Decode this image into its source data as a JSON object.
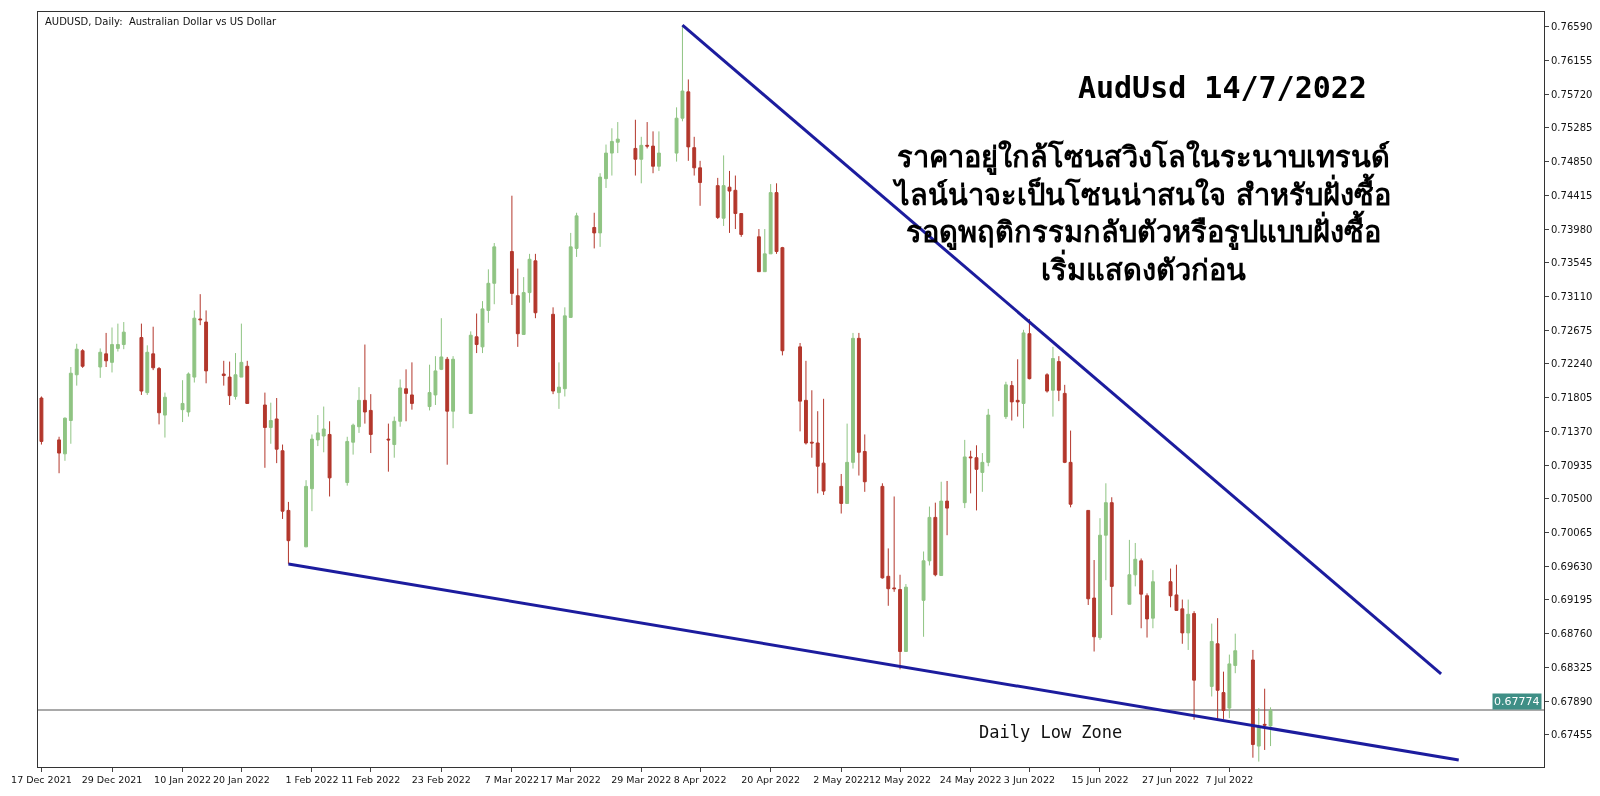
{
  "chart_data": {
    "type": "candlestick",
    "title": "AudUsd 14/7/2022",
    "subtitle": "ราคาอยู่ใกล้โซนสวิงโลในระนาบเทรนด์\nไลน์น่าจะเป็นโซนน่าสนใจ สำหรับฝั่งซื้อ\nรอดูพฤติกรรมกลับตัวหรือรูปแบบฝั่งซื้อ\nเริ่มแสดงตัวก่อน",
    "annotations": [
      "AUDUSD, Daily:  Australian Dollar vs US Dollar",
      "Daily Low Zone"
    ],
    "x": [
      "2021-12-17",
      "2021-12-20",
      "2021-12-21",
      "2021-12-22",
      "2021-12-23",
      "2021-12-24",
      "2021-12-27",
      "2021-12-28",
      "2021-12-29",
      "2021-12-30",
      "2021-12-31",
      "2022-01-03",
      "2022-01-04",
      "2022-01-05",
      "2022-01-06",
      "2022-01-07",
      "2022-01-10",
      "2022-01-11",
      "2022-01-12",
      "2022-01-13",
      "2022-01-14",
      "2022-01-17",
      "2022-01-18",
      "2022-01-19",
      "2022-01-20",
      "2022-01-21",
      "2022-01-24",
      "2022-01-25",
      "2022-01-26",
      "2022-01-27",
      "2022-01-28",
      "2022-01-31",
      "2022-02-01",
      "2022-02-02",
      "2022-02-03",
      "2022-02-04",
      "2022-02-07",
      "2022-02-08",
      "2022-02-09",
      "2022-02-10",
      "2022-02-11",
      "2022-02-14",
      "2022-02-15",
      "2022-02-16",
      "2022-02-17",
      "2022-02-18",
      "2022-02-21",
      "2022-02-22",
      "2022-02-23",
      "2022-02-24",
      "2022-02-25",
      "2022-02-28",
      "2022-03-01",
      "2022-03-02",
      "2022-03-03",
      "2022-03-04",
      "2022-03-07",
      "2022-03-08",
      "2022-03-09",
      "2022-03-10",
      "2022-03-11",
      "2022-03-14",
      "2022-03-15",
      "2022-03-16",
      "2022-03-17",
      "2022-03-18",
      "2022-03-21",
      "2022-03-22",
      "2022-03-23",
      "2022-03-24",
      "2022-03-25",
      "2022-03-28",
      "2022-03-29",
      "2022-03-30",
      "2022-03-31",
      "2022-04-01",
      "2022-04-04",
      "2022-04-05",
      "2022-04-06",
      "2022-04-07",
      "2022-04-08",
      "2022-04-11",
      "2022-04-12",
      "2022-04-13",
      "2022-04-14",
      "2022-04-15",
      "2022-04-18",
      "2022-04-19",
      "2022-04-20",
      "2022-04-21",
      "2022-04-22",
      "2022-04-25",
      "2022-04-26",
      "2022-04-27",
      "2022-04-28",
      "2022-04-29",
      "2022-05-02",
      "2022-05-03",
      "2022-05-04",
      "2022-05-05",
      "2022-05-06",
      "2022-05-09",
      "2022-05-10",
      "2022-05-11",
      "2022-05-12",
      "2022-05-13",
      "2022-05-16",
      "2022-05-17",
      "2022-05-18",
      "2022-05-19",
      "2022-05-20",
      "2022-05-23",
      "2022-05-24",
      "2022-05-25",
      "2022-05-26",
      "2022-05-27",
      "2022-05-30",
      "2022-05-31",
      "2022-06-01",
      "2022-06-02",
      "2022-06-03",
      "2022-06-06",
      "2022-06-07",
      "2022-06-08",
      "2022-06-09",
      "2022-06-10",
      "2022-06-13",
      "2022-06-14",
      "2022-06-15",
      "2022-06-16",
      "2022-06-17",
      "2022-06-20",
      "2022-06-21",
      "2022-06-22",
      "2022-06-23",
      "2022-06-24",
      "2022-06-27",
      "2022-06-28",
      "2022-06-29",
      "2022-06-30",
      "2022-07-01",
      "2022-07-04",
      "2022-07-05",
      "2022-07-06",
      "2022-07-07",
      "2022-07-08",
      "2022-07-11",
      "2022-07-12",
      "2022-07-13",
      "2022-07-14"
    ],
    "ohlc": [
      [
        0.718,
        0.7182,
        0.712,
        0.7124
      ],
      [
        0.7126,
        0.713,
        0.7083,
        0.7109
      ],
      [
        0.7108,
        0.7155,
        0.7099,
        0.7154
      ],
      [
        0.7151,
        0.722,
        0.7121,
        0.7212
      ],
      [
        0.721,
        0.725,
        0.7196,
        0.7243
      ],
      [
        0.7241,
        0.7243,
        0.7219,
        0.7221
      ],
      [
        0.722,
        0.7244,
        0.7206,
        0.7239
      ],
      [
        0.7237,
        0.7264,
        0.722,
        0.7228
      ],
      [
        0.7226,
        0.7271,
        0.7213,
        0.7249
      ],
      [
        0.7244,
        0.7276,
        0.724,
        0.7249
      ],
      [
        0.7249,
        0.7278,
        0.7243,
        0.7265
      ],
      [
        0.7258,
        0.7276,
        0.7184,
        0.7189
      ],
      [
        0.7187,
        0.7248,
        0.7184,
        0.7239
      ],
      [
        0.7237,
        0.7272,
        0.7216,
        0.7219
      ],
      [
        0.7218,
        0.722,
        0.7146,
        0.7161
      ],
      [
        0.7158,
        0.7187,
        0.7129,
        0.7181
      ],
      [
        0.7165,
        0.7203,
        0.7149,
        0.7173
      ],
      [
        0.7162,
        0.7213,
        0.7156,
        0.7211
      ],
      [
        0.7207,
        0.7293,
        0.72,
        0.7283
      ],
      [
        0.7282,
        0.7314,
        0.7274,
        0.7281
      ],
      [
        0.7278,
        0.7293,
        0.7199,
        0.7215
      ],
      [
        0.7211,
        0.7228,
        0.7196,
        0.7209
      ],
      [
        0.7207,
        0.7227,
        0.7171,
        0.7183
      ],
      [
        0.7182,
        0.7238,
        0.7178,
        0.721
      ],
      [
        0.7207,
        0.7276,
        0.7207,
        0.7226
      ],
      [
        0.7221,
        0.7228,
        0.7173,
        0.7173
      ],
      [
        0.7171,
        0.7187,
        0.709,
        0.7142
      ],
      [
        0.7142,
        0.7174,
        0.7121,
        0.7151
      ],
      [
        0.7153,
        0.718,
        0.7096,
        0.7114
      ],
      [
        0.7112,
        0.712,
        0.7024,
        0.7034
      ],
      [
        0.7035,
        0.7046,
        0.6966,
        0.6996
      ],
      [
        0.6988,
        0.7074,
        0.6988,
        0.7066
      ],
      [
        0.7063,
        0.7133,
        0.7034,
        0.7127
      ],
      [
        0.7126,
        0.7158,
        0.7118,
        0.7135
      ],
      [
        0.7131,
        0.7169,
        0.711,
        0.714
      ],
      [
        0.7133,
        0.715,
        0.7053,
        0.7077
      ],
      [
        0.7071,
        0.713,
        0.7067,
        0.7124
      ],
      [
        0.7123,
        0.7147,
        0.7107,
        0.7145
      ],
      [
        0.7143,
        0.7194,
        0.7135,
        0.7177
      ],
      [
        0.7177,
        0.7249,
        0.7147,
        0.7162
      ],
      [
        0.7164,
        0.7185,
        0.7109,
        0.7133
      ],
      [
        0.7127,
        0.7147,
        0.7085,
        0.7126
      ],
      [
        0.712,
        0.7156,
        0.7103,
        0.715
      ],
      [
        0.715,
        0.7204,
        0.7143,
        0.7193
      ],
      [
        0.7192,
        0.7217,
        0.715,
        0.7186
      ],
      [
        0.7184,
        0.7226,
        0.7165,
        0.7173
      ],
      [
        0.7169,
        0.7223,
        0.7164,
        0.7187
      ],
      [
        0.7184,
        0.7234,
        0.7171,
        0.7215
      ],
      [
        0.7217,
        0.7283,
        0.7216,
        0.7233
      ],
      [
        0.723,
        0.7233,
        0.7094,
        0.7163
      ],
      [
        0.7163,
        0.7234,
        0.7141,
        0.723
      ],
      [
        0.716,
        0.7266,
        0.716,
        0.7261
      ],
      [
        0.7259,
        0.7289,
        0.7238,
        0.7249
      ],
      [
        0.7246,
        0.7305,
        0.7238,
        0.7295
      ],
      [
        0.7293,
        0.7346,
        0.7277,
        0.7328
      ],
      [
        0.7328,
        0.738,
        0.7301,
        0.7375
      ],
      [
        0.7369,
        0.7441,
        0.73,
        0.7315
      ],
      [
        0.7312,
        0.7347,
        0.7246,
        0.7263
      ],
      [
        0.7262,
        0.7336,
        0.7262,
        0.7316
      ],
      [
        0.7316,
        0.7366,
        0.7303,
        0.7359
      ],
      [
        0.7357,
        0.7366,
        0.7283,
        0.729
      ],
      [
        0.7288,
        0.7297,
        0.7185,
        0.7189
      ],
      [
        0.7187,
        0.7226,
        0.7166,
        0.7194
      ],
      [
        0.7192,
        0.7297,
        0.7182,
        0.7286
      ],
      [
        0.7284,
        0.7393,
        0.7284,
        0.7375
      ],
      [
        0.7373,
        0.7419,
        0.7362,
        0.7415
      ],
      [
        0.74,
        0.7419,
        0.7373,
        0.7393
      ],
      [
        0.7393,
        0.747,
        0.7375,
        0.7465
      ],
      [
        0.7463,
        0.7507,
        0.7451,
        0.7496
      ],
      [
        0.7496,
        0.7528,
        0.7467,
        0.7511
      ],
      [
        0.751,
        0.7536,
        0.7496,
        0.7514
      ],
      [
        0.7502,
        0.7539,
        0.7467,
        0.7488
      ],
      [
        0.7488,
        0.7517,
        0.7457,
        0.7506
      ],
      [
        0.7506,
        0.7536,
        0.7502,
        0.7505
      ],
      [
        0.7505,
        0.7524,
        0.747,
        0.7479
      ],
      [
        0.7479,
        0.7524,
        0.7473,
        0.7496
      ],
      [
        0.7496,
        0.7555,
        0.7485,
        0.7541
      ],
      [
        0.7541,
        0.7661,
        0.7537,
        0.7576
      ],
      [
        0.7575,
        0.7591,
        0.7486,
        0.7504
      ],
      [
        0.7503,
        0.7517,
        0.7467,
        0.7477
      ],
      [
        0.7477,
        0.7486,
        0.7428,
        0.7458
      ],
      [
        0.7454,
        0.7464,
        0.7411,
        0.7413
      ],
      [
        0.7412,
        0.7493,
        0.7402,
        0.7454
      ],
      [
        0.7452,
        0.7473,
        0.7393,
        0.7447
      ],
      [
        0.7448,
        0.7467,
        0.7398,
        0.7418
      ],
      [
        0.7418,
        0.7418,
        0.7388,
        0.7391
      ],
      [
        0.7388,
        0.7398,
        0.7343,
        0.7343
      ],
      [
        0.7343,
        0.7398,
        0.7343,
        0.7366
      ],
      [
        0.7366,
        0.7456,
        0.7366,
        0.7445
      ],
      [
        0.7445,
        0.7457,
        0.7366,
        0.7369
      ],
      [
        0.7374,
        0.7375,
        0.7235,
        0.7241
      ],
      [
        0.7246,
        0.7251,
        0.7137,
        0.7176
      ],
      [
        0.7177,
        0.7228,
        0.712,
        0.7122
      ],
      [
        0.7123,
        0.719,
        0.7103,
        0.7122
      ],
      [
        0.7122,
        0.7163,
        0.7057,
        0.7092
      ],
      [
        0.7096,
        0.7179,
        0.7055,
        0.706
      ],
      [
        0.7066,
        0.7082,
        0.7031,
        0.7044
      ],
      [
        0.7044,
        0.7147,
        0.7044,
        0.7097
      ],
      [
        0.7097,
        0.7264,
        0.7089,
        0.7257
      ],
      [
        0.7257,
        0.7264,
        0.708,
        0.711
      ],
      [
        0.7111,
        0.7133,
        0.7059,
        0.7072
      ],
      [
        0.7066,
        0.707,
        0.6947,
        0.6948
      ],
      [
        0.695,
        0.6986,
        0.6912,
        0.6934
      ],
      [
        0.6935,
        0.7053,
        0.693,
        0.6934
      ],
      [
        0.6933,
        0.6952,
        0.683,
        0.6853
      ],
      [
        0.6853,
        0.694,
        0.6853,
        0.6936
      ],
      [
        0.6919,
        0.6982,
        0.6872,
        0.697
      ],
      [
        0.697,
        0.704,
        0.6964,
        0.7026
      ],
      [
        0.7026,
        0.7045,
        0.695,
        0.6952
      ],
      [
        0.6951,
        0.7072,
        0.6951,
        0.7047
      ],
      [
        0.7047,
        0.7073,
        0.7003,
        0.7038
      ],
      [
        0.7045,
        0.7126,
        0.7038,
        0.7104
      ],
      [
        0.7104,
        0.7112,
        0.7057,
        0.7103
      ],
      [
        0.7103,
        0.7119,
        0.7035,
        0.7088
      ],
      [
        0.7084,
        0.7109,
        0.7059,
        0.7097
      ],
      [
        0.7097,
        0.7166,
        0.7092,
        0.7158
      ],
      [
        0.7156,
        0.7201,
        0.7153,
        0.7197
      ],
      [
        0.7196,
        0.7202,
        0.7151,
        0.7175
      ],
      [
        0.7177,
        0.723,
        0.7156,
        0.7175
      ],
      [
        0.7173,
        0.7268,
        0.7141,
        0.7264
      ],
      [
        0.7263,
        0.7282,
        0.7204,
        0.7205
      ],
      [
        0.721,
        0.7212,
        0.7187,
        0.7189
      ],
      [
        0.719,
        0.7246,
        0.7156,
        0.7231
      ],
      [
        0.7227,
        0.7234,
        0.7176,
        0.719
      ],
      [
        0.7186,
        0.7197,
        0.7096,
        0.7097
      ],
      [
        0.7097,
        0.7138,
        0.7039,
        0.7043
      ],
      [
        0.7035,
        0.7035,
        0.6913,
        0.6921
      ],
      [
        0.6922,
        0.6971,
        0.6853,
        0.6872
      ],
      [
        0.6871,
        0.7025,
        0.6868,
        0.7003
      ],
      [
        0.7003,
        0.707,
        0.6945,
        0.7045
      ],
      [
        0.7045,
        0.7052,
        0.69,
        0.6937
      ],
      [
        0.6914,
        0.6997,
        0.6914,
        0.6952
      ],
      [
        0.6952,
        0.6993,
        0.6937,
        0.6972
      ],
      [
        0.697,
        0.6973,
        0.6883,
        0.6927
      ],
      [
        0.6925,
        0.6928,
        0.6871,
        0.6895
      ],
      [
        0.6896,
        0.6958,
        0.6883,
        0.6943
      ],
      [
        0.6943,
        0.696,
        0.691,
        0.6925
      ],
      [
        0.6926,
        0.6965,
        0.6906,
        0.6906
      ],
      [
        0.6908,
        0.692,
        0.6863,
        0.6877
      ],
      [
        0.6877,
        0.692,
        0.6855,
        0.6901
      ],
      [
        0.6902,
        0.6905,
        0.6765,
        0.6816
      ],
      [
        0.6808,
        0.6889,
        0.6795,
        0.6866
      ],
      [
        0.6863,
        0.6896,
        0.6766,
        0.6803
      ],
      [
        0.68,
        0.6827,
        0.6766,
        0.6777
      ],
      [
        0.678,
        0.6849,
        0.6767,
        0.6837
      ],
      [
        0.6835,
        0.6876,
        0.6825,
        0.6854
      ],
      [
        0.6842,
        0.6855,
        0.6716,
        0.6733
      ],
      [
        0.6731,
        0.678,
        0.6711,
        0.6756
      ],
      [
        0.6759,
        0.6805,
        0.6726,
        0.6758
      ],
      [
        0.6757,
        0.6781,
        0.6731,
        0.6777
      ]
    ],
    "colors": [
      "#b3372c",
      "#b3372c",
      "#8fc483",
      "#8fc483",
      "#8fc483",
      "#b3372c",
      "#8fc483",
      "#b3372c",
      "#8fc483",
      "#8fc483",
      "#8fc483",
      "#b3372c",
      "#8fc483",
      "#b3372c",
      "#b3372c",
      "#8fc483",
      "#8fc483",
      "#8fc483",
      "#8fc483",
      "#b3372c",
      "#b3372c",
      "#b3372c",
      "#b3372c",
      "#8fc483",
      "#8fc483",
      "#b3372c",
      "#b3372c",
      "#8fc483",
      "#b3372c",
      "#b3372c",
      "#b3372c",
      "#8fc483",
      "#8fc483",
      "#8fc483",
      "#8fc483",
      "#b3372c",
      "#8fc483",
      "#8fc483",
      "#8fc483",
      "#b3372c",
      "#b3372c",
      "#b3372c",
      "#8fc483",
      "#8fc483",
      "#b3372c",
      "#b3372c",
      "#8fc483",
      "#8fc483",
      "#8fc483",
      "#b3372c",
      "#8fc483",
      "#8fc483",
      "#b3372c",
      "#8fc483",
      "#8fc483",
      "#8fc483",
      "#b3372c",
      "#b3372c",
      "#8fc483",
      "#8fc483",
      "#b3372c",
      "#b3372c",
      "#8fc483",
      "#8fc483",
      "#8fc483",
      "#8fc483",
      "#b3372c",
      "#8fc483",
      "#8fc483",
      "#8fc483",
      "#8fc483",
      "#b3372c",
      "#8fc483",
      "#b3372c",
      "#b3372c",
      "#8fc483",
      "#8fc483",
      "#8fc483",
      "#b3372c",
      "#b3372c",
      "#b3372c",
      "#b3372c",
      "#8fc483",
      "#b3372c",
      "#b3372c",
      "#b3372c",
      "#b3372c",
      "#8fc483",
      "#8fc483",
      "#b3372c",
      "#b3372c",
      "#b3372c",
      "#b3372c",
      "#b3372c",
      "#b3372c",
      "#b3372c",
      "#b3372c",
      "#8fc483",
      "#8fc483",
      "#b3372c",
      "#b3372c",
      "#b3372c",
      "#b3372c",
      "#b3372c",
      "#b3372c",
      "#8fc483",
      "#8fc483",
      "#8fc483",
      "#b3372c",
      "#8fc483",
      "#b3372c",
      "#8fc483",
      "#b3372c",
      "#b3372c",
      "#8fc483",
      "#8fc483",
      "#8fc483",
      "#b3372c",
      "#b3372c",
      "#8fc483",
      "#b3372c",
      "#b3372c",
      "#8fc483",
      "#b3372c",
      "#b3372c",
      "#b3372c",
      "#b3372c",
      "#b3372c",
      "#8fc483",
      "#8fc483",
      "#b3372c",
      "#8fc483",
      "#8fc483",
      "#b3372c",
      "#b3372c",
      "#8fc483",
      "#b3372c",
      "#b3372c",
      "#b3372c",
      "#8fc483",
      "#b3372c",
      "#8fc483",
      "#b3372c",
      "#b3372c",
      "#8fc483",
      "#8fc483",
      "#b3372c",
      "#8fc483",
      "#b3372c",
      "#8fc483"
    ],
    "series": [
      {
        "type": "line",
        "color": "#1c1c9e",
        "x": [
          "2022-04-05",
          "2022-08-12"
        ],
        "values": [
          0.7661,
          0.6824
        ]
      },
      {
        "type": "line",
        "color": "#1c1c9e",
        "x": [
          "2022-01-28",
          "2022-08-15"
        ],
        "values": [
          0.6966,
          0.6713
        ]
      }
    ],
    "ref_lines": [
      {
        "axis": "y",
        "value": 0.67774,
        "label": "0.67774",
        "color": "#8c8c8c"
      }
    ],
    "xlim": [
      "2021-12-16T10:00",
      "2022-08-29T12:00"
    ],
    "xticks": [
      {
        "value": "2021-12-17",
        "label": "17 Dec 2021"
      },
      {
        "value": "2021-12-29",
        "label": "29 Dec 2021"
      },
      {
        "value": "2022-01-10",
        "label": "10 Jan 2022"
      },
      {
        "value": "2022-01-20",
        "label": "20 Jan 2022"
      },
      {
        "value": "2022-02-01",
        "label": "1 Feb 2022"
      },
      {
        "value": "2022-02-11",
        "label": "11 Feb 2022"
      },
      {
        "value": "2022-02-23",
        "label": "23 Feb 2022"
      },
      {
        "value": "2022-03-07",
        "label": "7 Mar 2022"
      },
      {
        "value": "2022-03-17",
        "label": "17 Mar 2022"
      },
      {
        "value": "2022-03-29",
        "label": "29 Mar 2022"
      },
      {
        "value": "2022-04-08",
        "label": "8 Apr 2022"
      },
      {
        "value": "2022-04-20",
        "label": "20 Apr 2022"
      },
      {
        "value": "2022-05-02",
        "label": "2 May 2022"
      },
      {
        "value": "2022-05-12",
        "label": "12 May 2022"
      },
      {
        "value": "2022-05-24",
        "label": "24 May 2022"
      },
      {
        "value": "2022-06-03",
        "label": "3 Jun 2022"
      },
      {
        "value": "2022-06-15",
        "label": "15 Jun 2022"
      },
      {
        "value": "2022-06-27",
        "label": "27 Jun 2022"
      },
      {
        "value": "2022-07-07",
        "label": "7 Jul 2022"
      }
    ],
    "ylim": [
      0.6704,
      0.7678
    ],
    "yticks": [
      0.67455,
      {
        "value": 0.6789,
        "label": "0.67890"
      },
      0.68325,
      {
        "value": 0.6876,
        "label": "0.68760"
      },
      0.69195,
      {
        "value": 0.6963,
        "label": "0.69630"
      },
      0.70065,
      {
        "value": 0.705,
        "label": "0.70500"
      },
      0.70935,
      {
        "value": 0.7137,
        "label": "0.71370"
      },
      0.71805,
      {
        "value": 0.7224,
        "label": "0.72240"
      },
      0.72675,
      {
        "value": 0.7311,
        "label": "0.73110"
      },
      0.73545,
      {
        "value": 0.7398,
        "label": "0.73980"
      },
      0.74415,
      {
        "value": 0.7485,
        "label": "0.74850"
      },
      0.75285,
      {
        "value": 0.7572,
        "label": "0.75720"
      },
      0.76155,
      {
        "value": 0.7659,
        "label": "0.76590"
      }
    ],
    "grid": false
  }
}
